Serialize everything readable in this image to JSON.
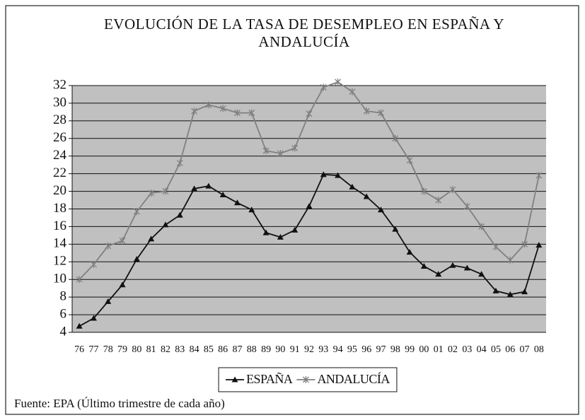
{
  "chart_data": {
    "type": "line",
    "title": "EVOLUCIÓN DE LA TASA DE  DESEMPLEO EN ESPAÑA Y ANDALUCÍA",
    "source": "Fuente: EPA (Último trimestre de cada año)",
    "categories": [
      "76",
      "77",
      "78",
      "79",
      "80",
      "81",
      "82",
      "83",
      "84",
      "85",
      "86",
      "87",
      "88",
      "89",
      "90",
      "91",
      "92",
      "93",
      "94",
      "95",
      "96",
      "97",
      "98",
      "99",
      "00",
      "01",
      "02",
      "03",
      "04",
      "05",
      "06",
      "07",
      "08"
    ],
    "series": [
      {
        "name": "ESPAÑA",
        "color": "#111111",
        "marker": "triangle",
        "values": [
          4.7,
          5.6,
          7.5,
          9.4,
          12.3,
          14.6,
          16.2,
          17.3,
          20.3,
          20.6,
          19.6,
          18.7,
          17.9,
          15.3,
          14.8,
          15.6,
          18.3,
          21.9,
          21.8,
          20.5,
          19.4,
          17.9,
          15.7,
          13.1,
          11.5,
          10.6,
          11.6,
          11.3,
          10.6,
          8.7,
          8.3,
          8.6,
          13.9
        ]
      },
      {
        "name": "ANDALUCÍA",
        "color": "#808080",
        "marker": "cross",
        "values": [
          10.0,
          11.7,
          13.8,
          14.4,
          17.7,
          19.8,
          20.0,
          23.2,
          29.1,
          29.8,
          29.4,
          28.9,
          28.9,
          24.6,
          24.3,
          24.9,
          28.8,
          31.8,
          32.4,
          31.3,
          29.1,
          28.9,
          26.0,
          23.5,
          20.0,
          19.0,
          20.2,
          18.3,
          16.0,
          13.7,
          12.2,
          14.0,
          21.8
        ]
      }
    ],
    "ylim": [
      4,
      32
    ],
    "yticks": [
      4,
      6,
      8,
      10,
      12,
      14,
      16,
      18,
      20,
      22,
      24,
      26,
      28,
      30,
      32
    ],
    "grid": true,
    "legend": "bottom",
    "plot_background": "#c0c0c0"
  }
}
